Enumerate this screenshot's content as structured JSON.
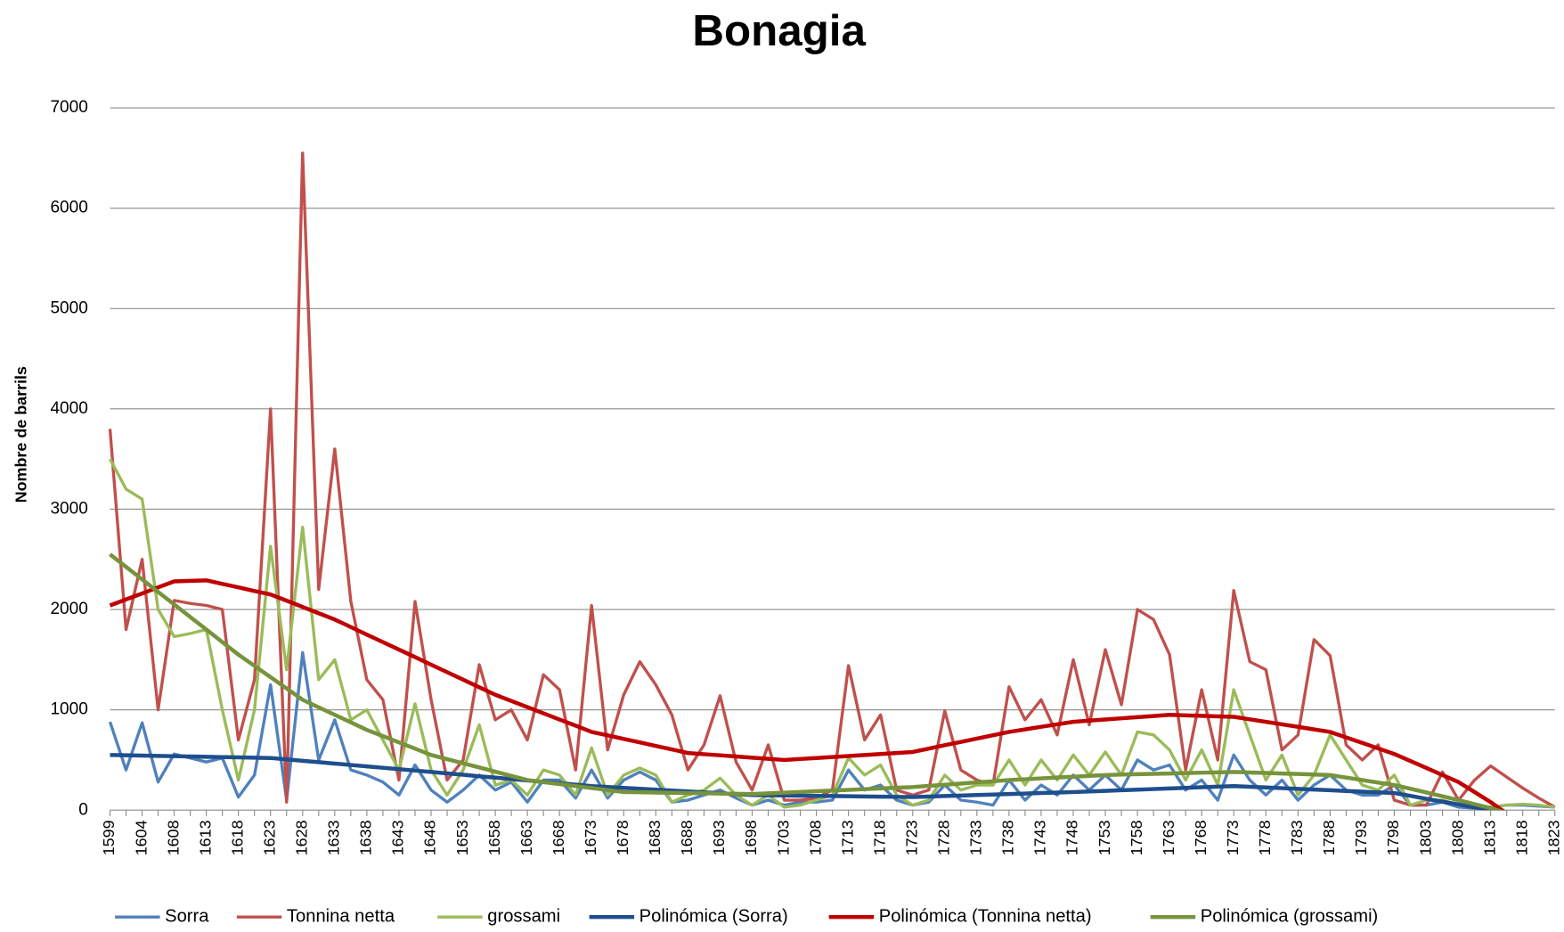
{
  "chart_data": {
    "type": "line",
    "title": "Bonagia",
    "y_label": "Nombre de barrils",
    "categories": [
      "1599",
      null,
      "1604",
      null,
      "1608",
      null,
      "1613",
      null,
      "1618",
      null,
      "1623",
      null,
      "1628",
      null,
      "1633",
      null,
      "1638",
      null,
      "1643",
      null,
      "1648",
      null,
      "1653",
      null,
      "1658",
      null,
      "1663",
      null,
      "1668",
      null,
      "1673",
      null,
      "1678",
      null,
      "1683",
      null,
      "1688",
      null,
      "1693",
      null,
      "1698",
      null,
      "1703",
      null,
      "1708",
      null,
      "1713",
      null,
      "1718",
      null,
      "1723",
      null,
      "1728",
      null,
      "1733",
      null,
      "1738",
      null,
      "1743",
      null,
      "1748",
      null,
      "1753",
      null,
      "1758",
      null,
      "1763",
      null,
      "1768",
      null,
      "1773",
      null,
      "1778",
      null,
      "1783",
      null,
      "1788",
      null,
      "1793",
      null,
      "1798",
      null,
      "1803",
      null,
      "1808",
      null,
      "1813",
      null,
      "1818",
      null,
      "1823"
    ],
    "ylim": [
      0,
      7000
    ],
    "yticks": [
      0,
      1000,
      2000,
      3000,
      4000,
      5000,
      6000,
      7000
    ],
    "grid": true,
    "legend": "bottom",
    "series": [
      {
        "name": "Sorra",
        "color": "#4f81bd",
        "width": 3,
        "values": [
          880,
          400,
          870,
          280,
          560,
          520,
          480,
          520,
          130,
          350,
          1250,
          100,
          1570,
          500,
          900,
          400,
          350,
          280,
          150,
          450,
          200,
          80,
          200,
          350,
          200,
          280,
          80,
          300,
          300,
          120,
          400,
          120,
          300,
          380,
          300,
          80,
          100,
          150,
          200,
          120,
          50,
          100,
          50,
          80,
          80,
          100,
          400,
          200,
          250,
          100,
          50,
          80,
          250,
          100,
          80,
          50,
          300,
          100,
          250,
          150,
          350,
          200,
          350,
          200,
          500,
          400,
          450,
          200,
          300,
          100,
          550,
          300,
          150,
          300,
          100,
          250,
          350,
          200,
          150,
          150,
          250,
          50,
          50,
          80,
          30,
          20,
          30,
          50,
          50,
          40,
          30
        ]
      },
      {
        "name": "Tonnina netta",
        "color": "#c0504d",
        "width": 3,
        "values": [
          3800,
          1800,
          2500,
          1000,
          2090,
          2060,
          2040,
          2000,
          700,
          1300,
          4000,
          80,
          6550,
          2200,
          3600,
          2080,
          1300,
          1100,
          300,
          2080,
          1100,
          300,
          500,
          1450,
          900,
          1000,
          700,
          1350,
          1200,
          400,
          2040,
          600,
          1150,
          1480,
          1250,
          950,
          400,
          650,
          1140,
          480,
          200,
          650,
          100,
          100,
          120,
          200,
          1440,
          700,
          950,
          200,
          150,
          200,
          990,
          400,
          300,
          250,
          1230,
          900,
          1100,
          750,
          1500,
          850,
          1600,
          1050,
          2000,
          1900,
          1550,
          400,
          1200,
          500,
          2190,
          1480,
          1400,
          600,
          750,
          1700,
          1540,
          650,
          500,
          650,
          100,
          50,
          50,
          380,
          100,
          300,
          440,
          330,
          220,
          120,
          30
        ]
      },
      {
        "name": "grossami",
        "color": "#9bbb59",
        "width": 3,
        "values": [
          3500,
          3200,
          3100,
          2000,
          1730,
          1760,
          1800,
          1000,
          300,
          1000,
          2630,
          1400,
          2820,
          1300,
          1500,
          900,
          1000,
          700,
          400,
          1060,
          400,
          150,
          400,
          850,
          250,
          300,
          150,
          400,
          350,
          150,
          620,
          150,
          350,
          420,
          350,
          80,
          150,
          200,
          320,
          150,
          50,
          150,
          30,
          50,
          100,
          150,
          520,
          350,
          450,
          150,
          50,
          100,
          350,
          200,
          250,
          250,
          500,
          250,
          500,
          300,
          550,
          350,
          580,
          350,
          780,
          750,
          600,
          300,
          600,
          250,
          1200,
          750,
          300,
          550,
          150,
          350,
          750,
          500,
          250,
          200,
          350,
          50,
          100,
          100,
          50,
          30,
          30,
          50,
          60,
          50,
          30
        ]
      },
      {
        "name": "Polinómica (Sorra)",
        "color": "#1f4e8c",
        "width": 4,
        "values": [
          550,
          547,
          544,
          541,
          538,
          535,
          532,
          529,
          526,
          523,
          520,
          506,
          492,
          478,
          464,
          450,
          436,
          422,
          408,
          394,
          380,
          366,
          352,
          338,
          324,
          310,
          296,
          282,
          268,
          254,
          240,
          231,
          222,
          213,
          204,
          195,
          186,
          177,
          168,
          159,
          150,
          148,
          146,
          144,
          142,
          140,
          138,
          136,
          134,
          132,
          130,
          135,
          140,
          145,
          150,
          155,
          160,
          165,
          170,
          175,
          180,
          186,
          192,
          198,
          204,
          210,
          216,
          222,
          228,
          234,
          240,
          233,
          226,
          219,
          212,
          205,
          198,
          191,
          184,
          177,
          170,
          142,
          113,
          85,
          57,
          28,
          0,
          -32,
          -65,
          -97,
          -130
        ]
      },
      {
        "name": "Polinómica (Tonnina netta)",
        "color": "#c00000",
        "width": 4,
        "values": [
          2040,
          2100,
          2160,
          2220,
          2280,
          2285,
          2290,
          2255,
          2220,
          2185,
          2150,
          2088,
          2025,
          1963,
          1900,
          1825,
          1750,
          1675,
          1600,
          1525,
          1450,
          1375,
          1300,
          1225,
          1150,
          1088,
          1027,
          965,
          903,
          842,
          780,
          745,
          710,
          675,
          640,
          605,
          570,
          558,
          547,
          535,
          523,
          512,
          500,
          510,
          520,
          530,
          540,
          550,
          560,
          570,
          580,
          613,
          647,
          680,
          713,
          747,
          780,
          805,
          830,
          855,
          880,
          892,
          903,
          915,
          927,
          938,
          950,
          945,
          940,
          935,
          930,
          905,
          880,
          855,
          830,
          805,
          780,
          725,
          670,
          615,
          560,
          490,
          420,
          350,
          280,
          180,
          80,
          -35,
          -150,
          -275,
          -400
        ]
      },
      {
        "name": "Polinómica (grossami)",
        "color": "#77933c",
        "width": 4,
        "values": [
          2550,
          2425,
          2300,
          2175,
          2050,
          1925,
          1800,
          1675,
          1550,
          1438,
          1325,
          1213,
          1100,
          1025,
          950,
          875,
          800,
          738,
          675,
          613,
          550,
          508,
          467,
          425,
          383,
          342,
          300,
          280,
          260,
          240,
          220,
          200,
          180,
          178,
          175,
          173,
          170,
          168,
          165,
          163,
          160,
          167,
          174,
          181,
          188,
          195,
          202,
          209,
          216,
          223,
          230,
          242,
          253,
          265,
          277,
          288,
          300,
          308,
          317,
          325,
          333,
          342,
          350,
          354,
          358,
          361,
          365,
          369,
          373,
          376,
          380,
          375,
          370,
          365,
          360,
          355,
          350,
          325,
          300,
          275,
          250,
          213,
          175,
          138,
          100,
          60,
          20,
          -30,
          -80,
          -140,
          -200
        ]
      }
    ]
  }
}
